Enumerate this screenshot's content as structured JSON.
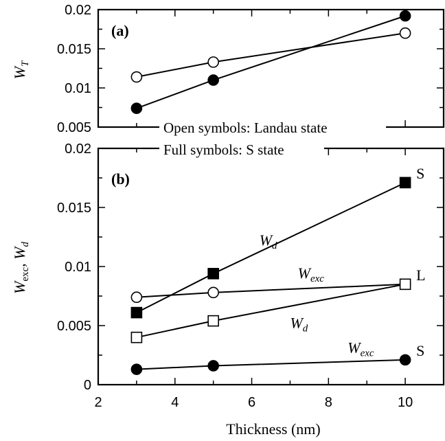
{
  "chart_data": [
    {
      "type": "line",
      "panel_label": "(a)",
      "ylabel": "W",
      "ylabel_sub": "T",
      "ylim": [
        0.005,
        0.02
      ],
      "xlim": [
        2,
        11
      ],
      "x": [
        3,
        5,
        10
      ],
      "yticks": [
        "0.005",
        "0.01",
        "0.015",
        "0.02"
      ],
      "yticks_values": [
        0.005,
        0.01,
        0.015,
        0.02
      ],
      "series": [
        {
          "marker": "open-circle",
          "values": [
            0.0114,
            0.0133,
            0.017
          ]
        },
        {
          "marker": "filled-circle",
          "values": [
            0.0074,
            0.011,
            0.0192
          ]
        }
      ]
    },
    {
      "type": "line",
      "panel_label": "(b)",
      "ylabel_parts": [
        "W",
        "exc",
        ", W",
        "d"
      ],
      "xlabel": "Thickness (nm)",
      "ylim": [
        0,
        0.02
      ],
      "xlim": [
        2,
        11
      ],
      "x": [
        3,
        5,
        10
      ],
      "xticks": [
        "2",
        "4",
        "6",
        "8",
        "10"
      ],
      "xticks_values": [
        2,
        4,
        6,
        8,
        10
      ],
      "yticks": [
        "0",
        "0.005",
        "0.01",
        "0.015",
        "0.02"
      ],
      "yticks_values": [
        0,
        0.005,
        0.01,
        0.015,
        0.02
      ],
      "legend_lines": [
        "Open symbols: Landau state",
        "Full symbols: S state"
      ],
      "series": [
        {
          "marker": "filled-square",
          "values": [
            0.0061,
            0.0094,
            0.0171
          ],
          "end_label": "S"
        },
        {
          "marker": "open-circle",
          "values": [
            0.0074,
            0.0078,
            0.0085
          ]
        },
        {
          "marker": "open-square",
          "values": [
            0.004,
            0.0054,
            0.0085
          ],
          "end_label": "L"
        },
        {
          "marker": "filled-circle",
          "values": [
            0.0013,
            0.0016,
            0.0021
          ],
          "end_label": "S"
        }
      ],
      "annotations": [
        {
          "main": "W",
          "sub": "d",
          "anchor": [
            6.2,
            0.0118
          ]
        },
        {
          "main": "W",
          "sub": "exc",
          "anchor": [
            7.2,
            0.009
          ]
        },
        {
          "main": "W",
          "sub": "d",
          "anchor": [
            7.0,
            0.0048
          ]
        },
        {
          "main": "W",
          "sub": "exc",
          "anchor": [
            8.5,
            0.0027
          ]
        }
      ]
    }
  ]
}
